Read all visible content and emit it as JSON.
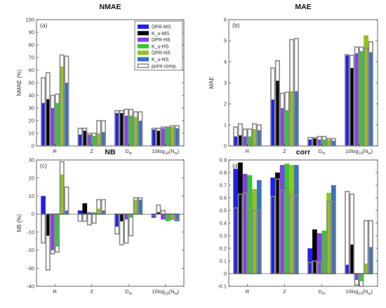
{
  "chart_data": [
    {
      "id": "a",
      "type": "bar",
      "title": "NMAE",
      "panel_label": "(a)",
      "ylabel": "NMAE (%)",
      "ylim": [
        0,
        100
      ],
      "yticks": [
        0,
        10,
        20,
        30,
        40,
        50,
        60,
        70,
        80,
        90,
        100
      ],
      "categories": [
        "R",
        "Z",
        "D_m",
        "10log10(N_w)"
      ],
      "category_labels": [
        "R",
        "Z",
        "Dm",
        "10log10(Nw)"
      ],
      "series": [
        {
          "name": "DPR-MS",
          "values": [
            34,
            9,
            26,
            13
          ]
        },
        {
          "name": "Ku-MS",
          "values": [
            37,
            12,
            26,
            12
          ]
        },
        {
          "name": "DPR-HS",
          "values": [
            30,
            9,
            24,
            14
          ]
        },
        {
          "name": "Ku-HS",
          "values": [
            34,
            8,
            24,
            15
          ]
        },
        {
          "name": "DPR-NS",
          "values": [
            63,
            10,
            23,
            15
          ]
        },
        {
          "name": "Ku-NS",
          "values": [
            50,
            11,
            20,
            14
          ]
        }
      ],
      "point_comp": [
        [
          54,
          58,
          40,
          41,
          72,
          71
        ],
        [
          14,
          14,
          10,
          10,
          20,
          20
        ],
        [
          28,
          28,
          29,
          29,
          27,
          27
        ],
        [
          14,
          14,
          15,
          15,
          16,
          16
        ]
      ],
      "grid": false,
      "legend": {
        "location": "top-right",
        "entries": [
          "DPR-MS",
          "K_u-MS",
          "DPR-HS",
          "K_u-HS",
          "DPR-NS",
          "K_u-NS",
          "point comp."
        ]
      }
    },
    {
      "id": "b",
      "type": "bar",
      "title": "MAE",
      "panel_label": "(b)",
      "ylabel": "MAE",
      "ylim": [
        0,
        6
      ],
      "yticks": [
        0,
        1,
        2,
        3,
        4,
        5,
        6
      ],
      "categories": [
        "R",
        "Z",
        "D_m",
        "10log10(N_w)"
      ],
      "category_labels": [
        "R",
        "Z",
        "Dm",
        "10log10(Nw)"
      ],
      "series": [
        {
          "name": "DPR-MS",
          "values": [
            0.45,
            2.2,
            0.3,
            4.35
          ]
        },
        {
          "name": "Ku-MS",
          "values": [
            0.5,
            3.1,
            0.35,
            3.7
          ]
        },
        {
          "name": "DPR-HS",
          "values": [
            0.45,
            1.8,
            0.3,
            4.4
          ]
        },
        {
          "name": "Ku-HS",
          "values": [
            0.45,
            1.7,
            0.3,
            4.5
          ]
        },
        {
          "name": "DPR-NS",
          "values": [
            0.8,
            2.6,
            0.3,
            5.25
          ]
        },
        {
          "name": "Ku-NS",
          "values": [
            0.75,
            2.6,
            0.25,
            4.45
          ]
        }
      ],
      "point_comp": [
        [
          0.9,
          1.05,
          0.8,
          0.8,
          1.05,
          1.0
        ],
        [
          3.7,
          4.05,
          2.5,
          2.55,
          5.05,
          5.1
        ],
        [
          0.4,
          0.4,
          0.45,
          0.45,
          0.35,
          0.35
        ],
        [
          4.3,
          4.3,
          4.7,
          4.7,
          4.65,
          4.95
        ]
      ],
      "grid": false
    },
    {
      "id": "c",
      "type": "bar",
      "title": "NB",
      "panel_label": "(c)",
      "ylabel": "NB (%)",
      "ylim": [
        -40,
        30
      ],
      "yticks": [
        -40,
        -30,
        -20,
        -10,
        0,
        10,
        20,
        30
      ],
      "categories": [
        "R",
        "Z",
        "D_m",
        "10log10(N_w)"
      ],
      "category_labels": [
        "R",
        "Z",
        "Dm",
        "10log10(Nw)"
      ],
      "series": [
        {
          "name": "DPR-MS",
          "values": [
            10,
            2,
            -7,
            -2
          ]
        },
        {
          "name": "Ku-MS",
          "values": [
            -12,
            6,
            -4,
            1
          ]
        },
        {
          "name": "DPR-HS",
          "values": [
            -20,
            1,
            -3,
            -3
          ]
        },
        {
          "name": "Ku-HS",
          "values": [
            -18,
            1,
            -2,
            -4
          ]
        },
        {
          "name": "DPR-NS",
          "values": [
            22,
            3,
            8,
            -3
          ]
        },
        {
          "name": "Ku-NS",
          "values": [
            2,
            2,
            8,
            -4
          ]
        }
      ],
      "point_comp": [
        [
          -16,
          -31,
          -22,
          -21,
          29,
          15
        ],
        [
          -4,
          -4,
          -6,
          -5,
          8,
          8
        ],
        [
          -11,
          -17,
          -16,
          -12,
          9,
          9
        ],
        [
          -1,
          5,
          2,
          -2,
          -3,
          -3
        ]
      ],
      "grid": false
    },
    {
      "id": "d",
      "type": "bar",
      "title": "corr",
      "panel_label": "(d)",
      "ylabel": "",
      "ylim": [
        -0.1,
        0.9
      ],
      "yticks": [
        -0.1,
        0,
        0.1,
        0.2,
        0.3,
        0.4,
        0.5,
        0.6,
        0.7,
        0.8,
        0.9
      ],
      "categories": [
        "R",
        "Z",
        "D_m",
        "10log10(N_w)"
      ],
      "category_labels": [
        "R",
        "Z",
        "Dm",
        "10log10(Nw)"
      ],
      "series": [
        {
          "name": "DPR-MS",
          "values": [
            0.83,
            0.76,
            0.2,
            0.07
          ]
        },
        {
          "name": "Ku-MS",
          "values": [
            0.88,
            0.8,
            0.35,
            0.23
          ]
        },
        {
          "name": "DPR-HS",
          "values": [
            0.79,
            0.86,
            0.32,
            -0.05
          ]
        },
        {
          "name": "Ku-HS",
          "values": [
            0.78,
            0.87,
            0.34,
            -0.06
          ]
        },
        {
          "name": "DPR-NS",
          "values": [
            0.67,
            0.86,
            0.64,
            0.08
          ]
        },
        {
          "name": "Ku-NS",
          "values": [
            0.74,
            0.86,
            0.7,
            0.21
          ]
        }
      ],
      "point_comp": [
        [
          0.52,
          0.63,
          0.64,
          0.66,
          0.5,
          0.5
        ],
        [
          0.61,
          0.75,
          0.66,
          0.66,
          0.62,
          0.62
        ],
        [
          0.09,
          0.1,
          0.09,
          0.3,
          0.57,
          0.57
        ],
        [
          0.65,
          0.63,
          -0.09,
          -0.1,
          0.42,
          0.42
        ]
      ],
      "grid": false
    }
  ],
  "series_colors": [
    "#1f1ff0",
    "#000000",
    "#8040ee",
    "#2ecc2e",
    "#8fc31f",
    "#3a72c0"
  ],
  "point_comp_color": "#888888"
}
